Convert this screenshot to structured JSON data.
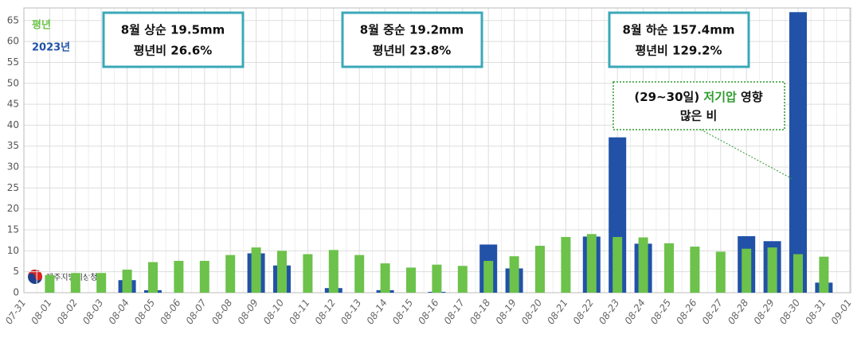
{
  "chart_data": {
    "type": "bar",
    "categories": [
      "07-31",
      "08-01",
      "08-02",
      "08-03",
      "08-04",
      "08-05",
      "08-06",
      "08-07",
      "08-08",
      "08-09",
      "08-10",
      "08-11",
      "08-12",
      "08-13",
      "08-14",
      "08-15",
      "08-16",
      "08-17",
      "08-18",
      "08-19",
      "08-20",
      "08-21",
      "08-22",
      "08-23",
      "08-24",
      "08-25",
      "08-26",
      "08-27",
      "08-28",
      "08-29",
      "08-30",
      "08-31",
      "09-01"
    ],
    "series": [
      {
        "name": "2023년",
        "color": "#2152a8",
        "values": [
          null,
          0,
          0,
          0,
          3.0,
          0.6,
          0,
          0,
          0,
          9.4,
          6.5,
          0,
          1.1,
          0,
          0.6,
          0,
          0.2,
          0,
          11.5,
          5.8,
          0,
          0,
          13.4,
          37.1,
          11.7,
          0,
          0,
          0,
          13.5,
          12.3,
          67.0,
          2.4,
          null
        ]
      },
      {
        "name": "평년",
        "color": "#6cc24a",
        "values": [
          null,
          4.2,
          4.7,
          4.7,
          5.5,
          7.3,
          7.6,
          7.6,
          9.0,
          10.8,
          10.0,
          9.2,
          10.2,
          9.0,
          7.0,
          6.0,
          6.7,
          6.4,
          7.6,
          8.7,
          11.2,
          13.3,
          14.0,
          13.3,
          13.2,
          11.8,
          11.0,
          9.8,
          10.5,
          10.8,
          9.2,
          8.6,
          null
        ]
      }
    ],
    "ylim": [
      0,
      68
    ],
    "yticks": [
      0,
      5,
      10,
      15,
      20,
      25,
      30,
      35,
      40,
      45,
      50,
      55,
      60,
      65
    ],
    "grid": true,
    "annotations": [
      {
        "title": "8월 상순 19.5mm",
        "ratio": "평년비 26.6%",
        "ratio_color": "#a0522d"
      },
      {
        "title": "8월 중순 19.2mm",
        "ratio": "평년비 23.8%",
        "ratio_color": "#a0522d"
      },
      {
        "title": "8월 하순 157.4mm",
        "ratio": "평년비 129.2%",
        "ratio_color": "#2e9b2e"
      }
    ],
    "callout": {
      "parts": [
        "(29~30일) ",
        "저기압",
        " 영향"
      ],
      "line2": "많은 비"
    },
    "logo": "제주지방기상청"
  }
}
